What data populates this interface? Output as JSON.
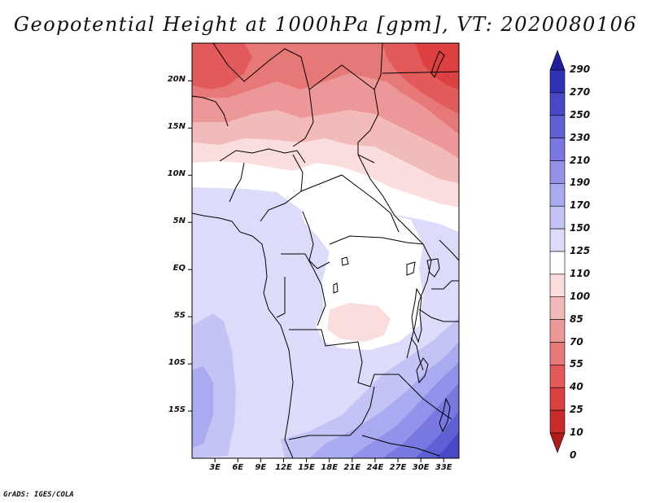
{
  "title": "Geopotential Height at 1000hPa [gpm], VT: 2020080106",
  "credit": "GrADS: IGES/COLA",
  "map": {
    "variable": "Geopotential Height",
    "level": "1000hPa",
    "units": "gpm",
    "valid_time": "2020080106",
    "lon_range": [
      0,
      35
    ],
    "lat_range": [
      -20,
      24
    ],
    "lat_ticks": [
      {
        "value": 20,
        "label": "20N"
      },
      {
        "value": 15,
        "label": "15N"
      },
      {
        "value": 10,
        "label": "10N"
      },
      {
        "value": 5,
        "label": "5N"
      },
      {
        "value": 0,
        "label": "EQ"
      },
      {
        "value": -5,
        "label": "5S"
      },
      {
        "value": -10,
        "label": "10S"
      },
      {
        "value": -15,
        "label": "15S"
      }
    ],
    "lon_ticks": [
      {
        "value": 3,
        "label": "3E"
      },
      {
        "value": 6,
        "label": "6E"
      },
      {
        "value": 9,
        "label": "9E"
      },
      {
        "value": 12,
        "label": "12E"
      },
      {
        "value": 15,
        "label": "15E"
      },
      {
        "value": 18,
        "label": "18E"
      },
      {
        "value": 21,
        "label": "21E"
      },
      {
        "value": 24,
        "label": "24E"
      },
      {
        "value": 27,
        "label": "27E"
      },
      {
        "value": 30,
        "label": "30E"
      },
      {
        "value": 33,
        "label": "33E"
      }
    ]
  },
  "colorbar": {
    "levels": [
      "0",
      "10",
      "25",
      "40",
      "55",
      "70",
      "85",
      "100",
      "110",
      "125",
      "150",
      "170",
      "190",
      "210",
      "230",
      "250",
      "270",
      "290"
    ],
    "colors": [
      "#b31a1a",
      "#c92a2a",
      "#dc4040",
      "#e25a5a",
      "#e67878",
      "#ec9898",
      "#f3baba",
      "#fadddd",
      "#ffffff",
      "#dcdcfa",
      "#c3c3f5",
      "#aaaaf0",
      "#9292ea",
      "#7878e0",
      "#6060d5",
      "#4848c8",
      "#3232b8",
      "#1f1fa0"
    ]
  }
}
